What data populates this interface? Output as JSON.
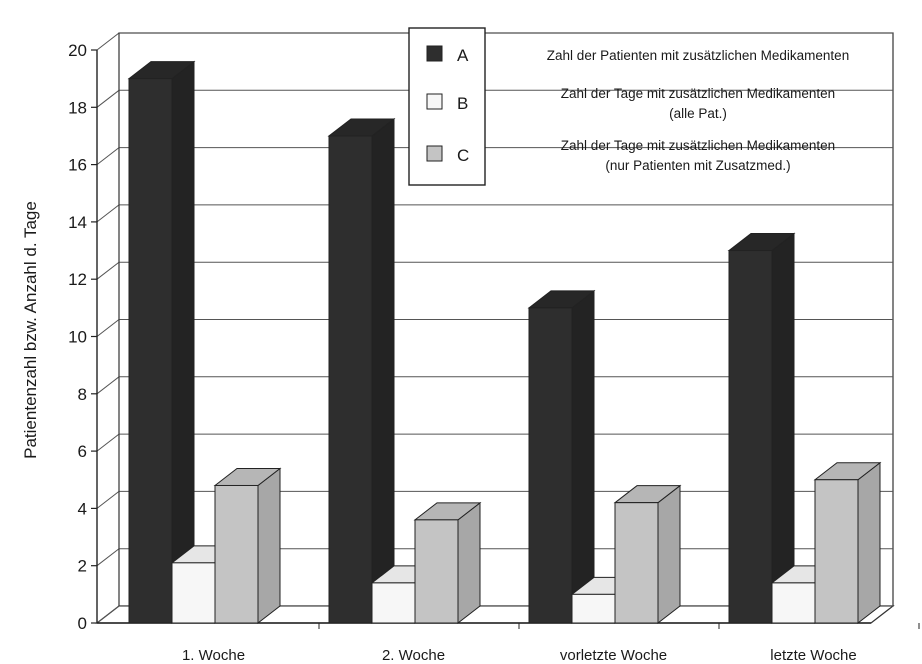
{
  "chart_data": {
    "type": "bar",
    "title": "",
    "xlabel": "",
    "ylabel": "Patientenzahl bzw. Anzahl d. Tage",
    "ylim": [
      0,
      20
    ],
    "yticks": [
      0,
      2,
      4,
      6,
      8,
      10,
      12,
      14,
      16,
      18,
      20
    ],
    "grid": true,
    "three_d": true,
    "legend_position": "top-right",
    "categories": [
      "1. Woche",
      "2. Woche",
      "vorletzte Woche",
      "letzte Woche"
    ],
    "series": [
      {
        "name": "A",
        "description_lines": [
          "Zahl der Patienten mit zusätzlichen Medikamenten"
        ],
        "color": "#2e2e2e",
        "values": [
          19,
          17,
          11,
          13
        ]
      },
      {
        "name": "B",
        "description_lines": [
          "Zahl der Tage mit zusätzlichen Medikamenten",
          "(alle Pat.)"
        ],
        "color": "#f7f7f7",
        "values": [
          2.1,
          1.4,
          1.0,
          1.4
        ]
      },
      {
        "name": "C",
        "description_lines": [
          "Zahl der Tage mit zusätzlichen Medikamenten",
          "(nur Patienten mit Zusatzmed.)"
        ],
        "color": "#c4c4c4",
        "values": [
          4.8,
          3.6,
          4.2,
          5.0
        ]
      }
    ]
  }
}
